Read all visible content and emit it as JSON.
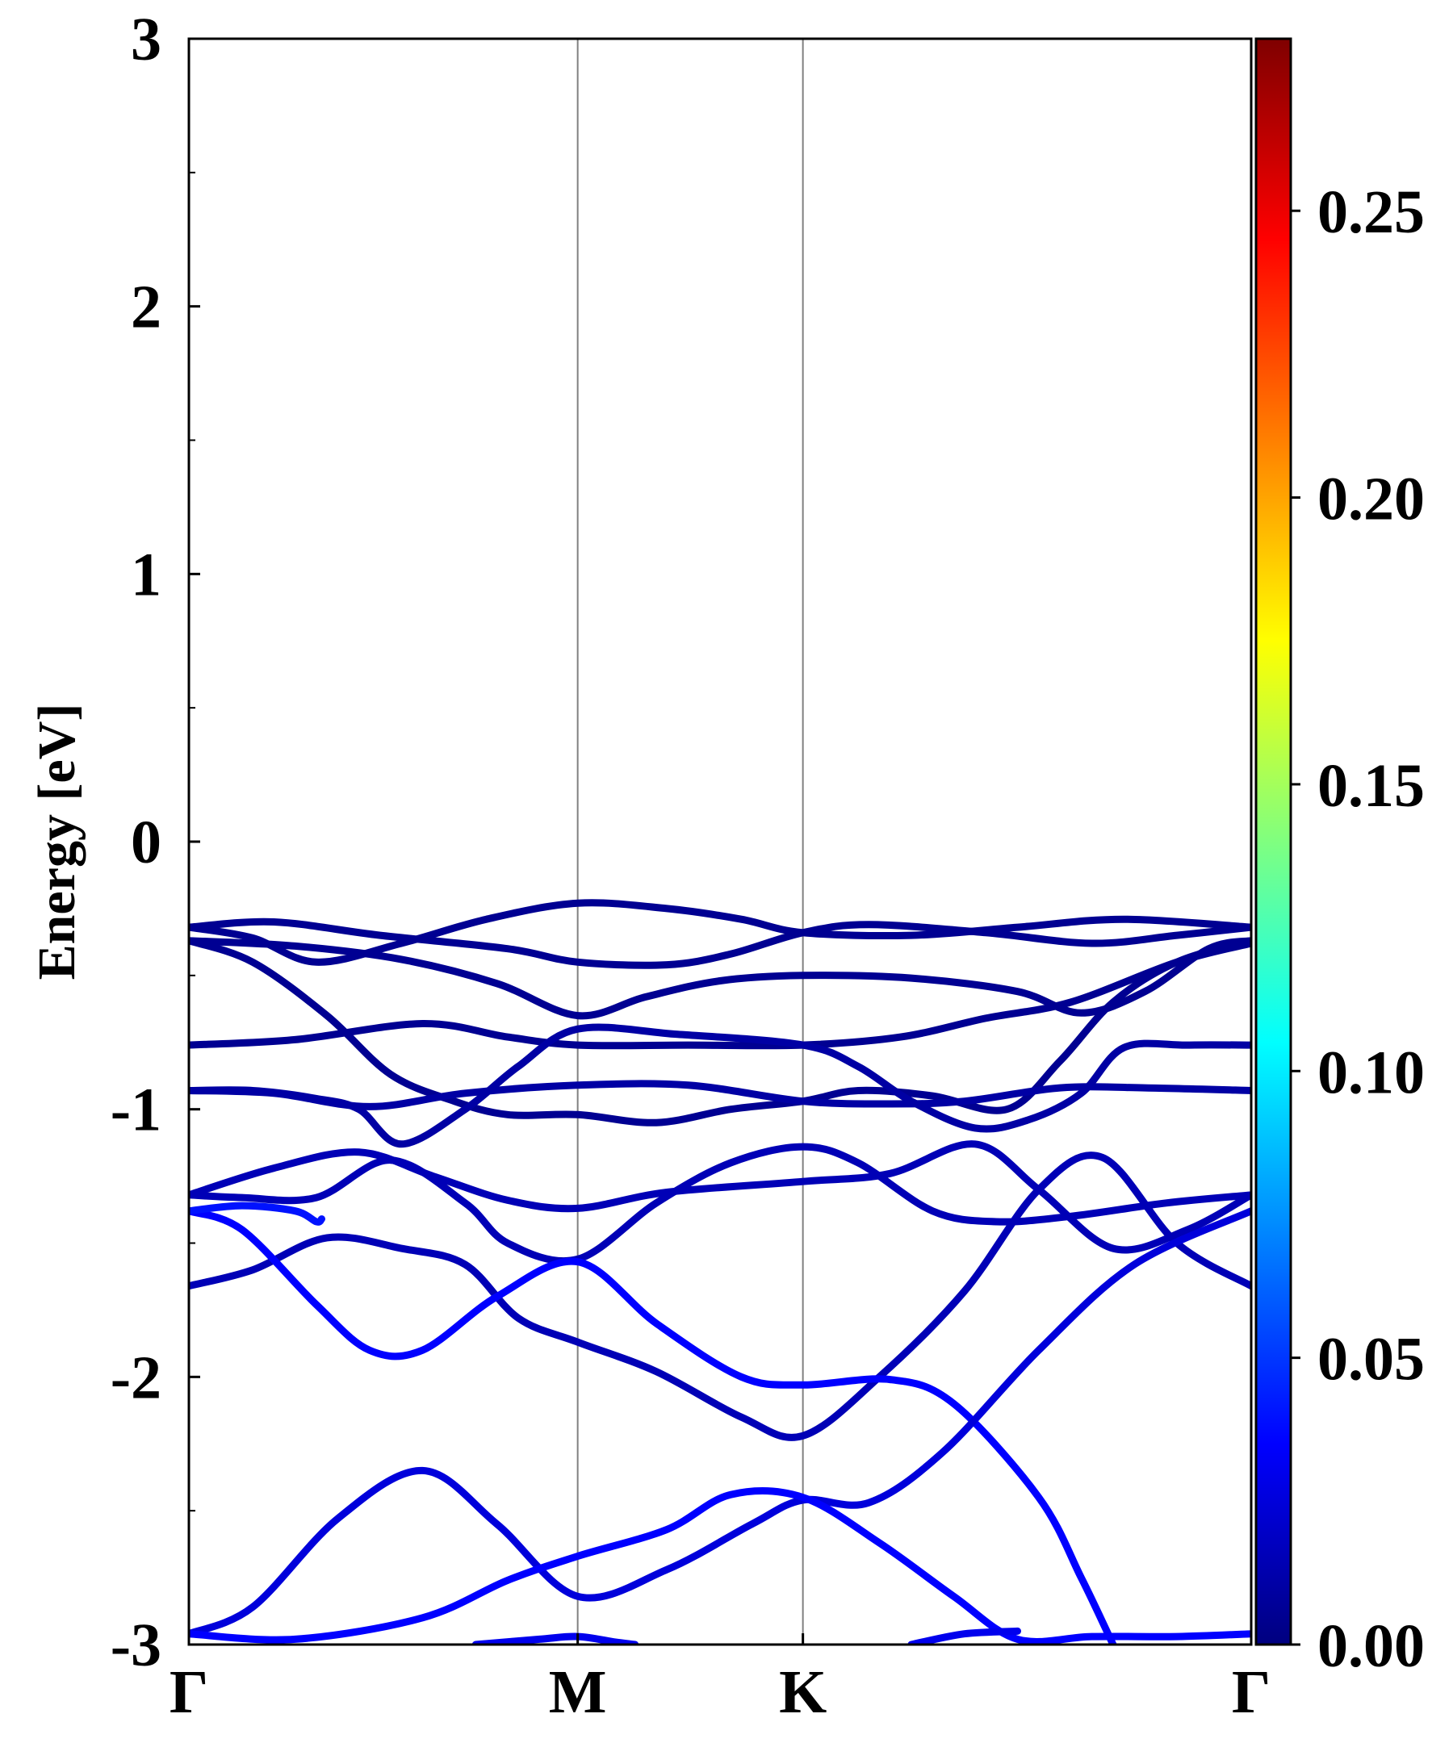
{
  "chart_data": {
    "type": "line",
    "title": "",
    "xlabel": "",
    "ylabel": "Energy [eV]",
    "ylim": [
      -3,
      3
    ],
    "y_ticks": [
      "3",
      "2",
      "1",
      "0",
      "-1",
      "-2",
      "-3"
    ],
    "y_tick_values": [
      3,
      2,
      1,
      0,
      -1,
      -2,
      -3
    ],
    "y_minor_ticks": [
      2.5,
      1.5,
      0.5,
      -0.5,
      -1.5,
      -2.5
    ],
    "k_points": [
      {
        "label": "Γ",
        "k": 0.0
      },
      {
        "label": "M",
        "k": 0.366
      },
      {
        "label": "K",
        "k": 0.578
      },
      {
        "label": "Γ",
        "k": 1.0
      }
    ],
    "colorbar": {
      "colormap": "jet",
      "range": [
        0.0,
        0.28
      ],
      "ticks": [
        "0.00",
        "0.05",
        "0.10",
        "0.15",
        "0.20",
        "0.25"
      ],
      "tick_values": [
        0.0,
        0.05,
        0.1,
        0.15,
        0.2,
        0.25
      ]
    },
    "series": [
      {
        "weight": 0.005,
        "points": [
          [
            0.0,
            -0.32
          ],
          [
            0.08,
            -0.3
          ],
          [
            0.18,
            -0.35
          ],
          [
            0.3,
            -0.4
          ],
          [
            0.366,
            -0.45
          ],
          [
            0.45,
            -0.46
          ],
          [
            0.51,
            -0.42
          ],
          [
            0.578,
            -0.34
          ],
          [
            0.64,
            -0.31
          ],
          [
            0.75,
            -0.34
          ],
          [
            0.85,
            -0.38
          ],
          [
            0.93,
            -0.35
          ],
          [
            1.0,
            -0.32
          ]
        ]
      },
      {
        "weight": 0.005,
        "points": [
          [
            0.0,
            -0.32
          ],
          [
            0.06,
            -0.36
          ],
          [
            0.12,
            -0.45
          ],
          [
            0.2,
            -0.38
          ],
          [
            0.28,
            -0.29
          ],
          [
            0.366,
            -0.23
          ],
          [
            0.45,
            -0.25
          ],
          [
            0.52,
            -0.29
          ],
          [
            0.578,
            -0.34
          ],
          [
            0.68,
            -0.35
          ],
          [
            0.78,
            -0.32
          ],
          [
            0.88,
            -0.29
          ],
          [
            1.0,
            -0.32
          ]
        ]
      },
      {
        "weight": 0.005,
        "points": [
          [
            0.0,
            -0.37
          ],
          [
            0.1,
            -0.39
          ],
          [
            0.2,
            -0.44
          ],
          [
            0.29,
            -0.53
          ],
          [
            0.366,
            -0.65
          ],
          [
            0.43,
            -0.58
          ],
          [
            0.5,
            -0.52
          ],
          [
            0.578,
            -0.5
          ],
          [
            0.68,
            -0.51
          ],
          [
            0.78,
            -0.56
          ],
          [
            0.84,
            -0.64
          ],
          [
            0.9,
            -0.56
          ],
          [
            0.96,
            -0.4
          ],
          [
            1.0,
            -0.37
          ]
        ]
      },
      {
        "weight": 0.005,
        "points": [
          [
            0.0,
            -0.37
          ],
          [
            0.06,
            -0.45
          ],
          [
            0.13,
            -0.65
          ],
          [
            0.19,
            -0.87
          ],
          [
            0.25,
            -0.97
          ],
          [
            0.3,
            -1.02
          ],
          [
            0.366,
            -1.02
          ],
          [
            0.44,
            -1.05
          ],
          [
            0.51,
            -1.0
          ],
          [
            0.578,
            -0.97
          ],
          [
            0.63,
            -0.93
          ],
          [
            0.7,
            -0.95
          ],
          [
            0.77,
            -1.0
          ],
          [
            0.82,
            -0.82
          ],
          [
            0.87,
            -0.6
          ],
          [
            0.93,
            -0.45
          ],
          [
            1.0,
            -0.37
          ]
        ]
      },
      {
        "weight": 0.005,
        "points": [
          [
            0.0,
            -0.76
          ],
          [
            0.1,
            -0.74
          ],
          [
            0.22,
            -0.68
          ],
          [
            0.3,
            -0.73
          ],
          [
            0.366,
            -0.76
          ],
          [
            0.47,
            -0.76
          ],
          [
            0.578,
            -0.76
          ],
          [
            0.67,
            -0.73
          ],
          [
            0.75,
            -0.66
          ],
          [
            0.83,
            -0.6
          ],
          [
            0.93,
            -0.45
          ],
          [
            1.0,
            -0.38
          ]
        ]
      },
      {
        "weight": 0.01,
        "points": [
          [
            0.0,
            -0.93
          ],
          [
            0.06,
            -0.93
          ],
          [
            0.12,
            -0.96
          ],
          [
            0.16,
            -1.0
          ],
          [
            0.2,
            -1.13
          ],
          [
            0.26,
            -1.0
          ],
          [
            0.31,
            -0.84
          ],
          [
            0.366,
            -0.7
          ],
          [
            0.46,
            -0.72
          ],
          [
            0.578,
            -0.76
          ],
          [
            0.63,
            -0.84
          ],
          [
            0.68,
            -0.97
          ],
          [
            0.74,
            -1.07
          ],
          [
            0.79,
            -1.04
          ],
          [
            0.84,
            -0.94
          ],
          [
            0.88,
            -0.77
          ],
          [
            0.94,
            -0.76
          ],
          [
            1.0,
            -0.76
          ]
        ]
      },
      {
        "weight": 0.01,
        "points": [
          [
            0.0,
            -0.93
          ],
          [
            0.08,
            -0.94
          ],
          [
            0.17,
            -0.99
          ],
          [
            0.26,
            -0.94
          ],
          [
            0.366,
            -0.91
          ],
          [
            0.47,
            -0.91
          ],
          [
            0.578,
            -0.97
          ],
          [
            0.66,
            -0.98
          ],
          [
            0.73,
            -0.97
          ],
          [
            0.82,
            -0.92
          ],
          [
            0.9,
            -0.92
          ],
          [
            1.0,
            -0.93
          ]
        ]
      },
      {
        "weight": 0.015,
        "points": [
          [
            0.0,
            -1.32
          ],
          [
            0.08,
            -1.22
          ],
          [
            0.16,
            -1.16
          ],
          [
            0.23,
            -1.25
          ],
          [
            0.3,
            -1.34
          ],
          [
            0.366,
            -1.37
          ],
          [
            0.45,
            -1.31
          ],
          [
            0.578,
            -1.27
          ],
          [
            0.66,
            -1.24
          ],
          [
            0.74,
            -1.13
          ],
          [
            0.8,
            -1.3
          ],
          [
            0.87,
            -1.52
          ],
          [
            0.94,
            -1.45
          ],
          [
            1.0,
            -1.32
          ]
        ]
      },
      {
        "weight": 0.015,
        "points": [
          [
            0.0,
            -1.32
          ],
          [
            0.05,
            -1.33
          ],
          [
            0.12,
            -1.33
          ],
          [
            0.19,
            -1.19
          ],
          [
            0.26,
            -1.35
          ],
          [
            0.3,
            -1.5
          ],
          [
            0.366,
            -1.56
          ],
          [
            0.44,
            -1.35
          ],
          [
            0.51,
            -1.2
          ],
          [
            0.578,
            -1.14
          ],
          [
            0.63,
            -1.2
          ],
          [
            0.7,
            -1.38
          ],
          [
            0.76,
            -1.42
          ],
          [
            0.83,
            -1.4
          ],
          [
            0.92,
            -1.35
          ],
          [
            1.0,
            -1.32
          ]
        ]
      },
      {
        "weight": 0.015,
        "points": [
          [
            0.0,
            -1.66
          ],
          [
            0.06,
            -1.6
          ],
          [
            0.13,
            -1.48
          ],
          [
            0.2,
            -1.52
          ],
          [
            0.26,
            -1.58
          ],
          [
            0.31,
            -1.78
          ],
          [
            0.366,
            -1.87
          ],
          [
            0.44,
            -1.98
          ],
          [
            0.52,
            -2.15
          ],
          [
            0.578,
            -2.22
          ],
          [
            0.65,
            -2.0
          ],
          [
            0.73,
            -1.68
          ],
          [
            0.8,
            -1.3
          ],
          [
            0.86,
            -1.18
          ],
          [
            0.93,
            -1.5
          ],
          [
            1.0,
            -1.66
          ]
        ]
      },
      {
        "weight": 0.035,
        "points": [
          [
            0.0,
            -1.38
          ],
          [
            0.05,
            -1.45
          ],
          [
            0.12,
            -1.73
          ],
          [
            0.17,
            -1.9
          ],
          [
            0.22,
            -1.9
          ],
          [
            0.29,
            -1.7
          ],
          [
            0.366,
            -1.57
          ],
          [
            0.44,
            -1.8
          ],
          [
            0.52,
            -2.0
          ],
          [
            0.578,
            -2.03
          ],
          [
            0.66,
            -2.01
          ],
          [
            0.72,
            -2.1
          ],
          [
            0.8,
            -2.45
          ],
          [
            0.84,
            -2.75
          ],
          [
            0.87,
            -3.0
          ]
        ]
      },
      {
        "weight": 0.04,
        "points": [
          [
            0.0,
            -1.38
          ],
          [
            0.05,
            -1.36
          ],
          [
            0.1,
            -1.38
          ],
          [
            0.12,
            -1.42
          ],
          [
            0.125,
            -1.41
          ]
        ]
      },
      {
        "weight": 0.025,
        "points": [
          [
            0.0,
            -2.96
          ],
          [
            0.06,
            -2.86
          ],
          [
            0.14,
            -2.53
          ],
          [
            0.22,
            -2.35
          ],
          [
            0.29,
            -2.55
          ],
          [
            0.366,
            -2.82
          ],
          [
            0.45,
            -2.72
          ],
          [
            0.53,
            -2.55
          ],
          [
            0.578,
            -2.46
          ],
          [
            0.64,
            -2.47
          ],
          [
            0.71,
            -2.28
          ],
          [
            0.8,
            -1.9
          ],
          [
            0.89,
            -1.58
          ],
          [
            1.0,
            -1.38
          ]
        ]
      },
      {
        "weight": 0.035,
        "points": [
          [
            0.0,
            -2.96
          ],
          [
            0.1,
            -2.98
          ],
          [
            0.22,
            -2.9
          ],
          [
            0.3,
            -2.76
          ],
          [
            0.366,
            -2.67
          ],
          [
            0.45,
            -2.57
          ],
          [
            0.51,
            -2.44
          ],
          [
            0.578,
            -2.45
          ],
          [
            0.65,
            -2.62
          ],
          [
            0.72,
            -2.82
          ],
          [
            0.78,
            -2.98
          ],
          [
            0.85,
            -2.97
          ],
          [
            0.93,
            -2.97
          ],
          [
            1.0,
            -2.96
          ]
        ]
      },
      {
        "weight": 0.03,
        "points": [
          [
            0.27,
            -3.0
          ],
          [
            0.33,
            -2.98
          ],
          [
            0.366,
            -2.97
          ],
          [
            0.4,
            -2.99
          ],
          [
            0.42,
            -3.0
          ]
        ]
      },
      {
        "weight": 0.03,
        "points": [
          [
            0.68,
            -3.0
          ],
          [
            0.73,
            -2.96
          ],
          [
            0.78,
            -2.95
          ]
        ]
      }
    ]
  }
}
